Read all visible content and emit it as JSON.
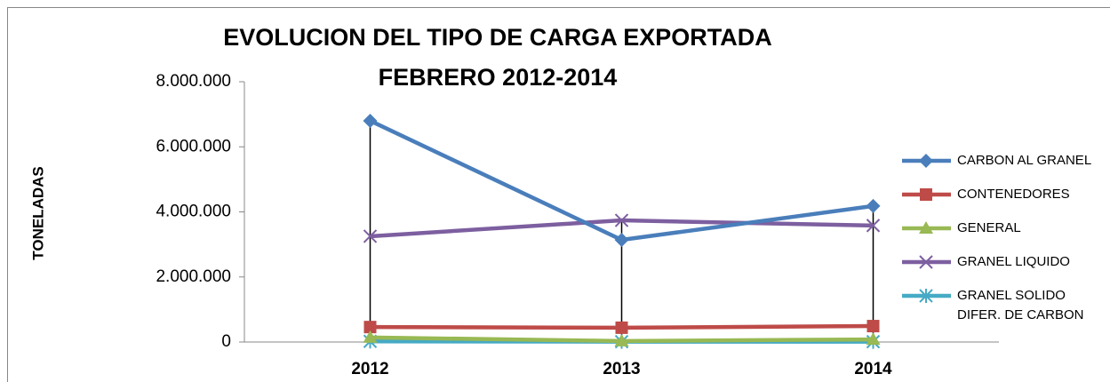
{
  "chart_data": {
    "type": "line",
    "title": [
      "EVOLUCION DEL TIPO DE CARGA EXPORTADA",
      "FEBRERO 2012-2014"
    ],
    "y_label": "TONELADAS",
    "categories": [
      "2012",
      "2013",
      "2014"
    ],
    "series": [
      {
        "name": "CARBON AL GRANEL",
        "color": "#4a7ebb",
        "marker": "diamond",
        "values": [
          6800000,
          3140000,
          4180000
        ]
      },
      {
        "name": "CONTENEDORES",
        "color": "#be4b48",
        "marker": "square",
        "values": [
          460000,
          440000,
          490000
        ]
      },
      {
        "name": "GENERAL",
        "color": "#98b954",
        "marker": "triangle",
        "values": [
          140000,
          30000,
          80000
        ]
      },
      {
        "name": "GRANEL LIQUIDO",
        "color": "#7d5fa0",
        "marker": "x",
        "values": [
          3250000,
          3740000,
          3580000
        ]
      },
      {
        "name": "GRANEL SOLIDO DIFER. DE CARBON",
        "color": "#46aac5",
        "marker": "star",
        "values": [
          20000,
          10000,
          10000
        ]
      }
    ],
    "ylim": [
      0,
      8000000
    ],
    "yticks": [
      0,
      {
        "value": 2000000,
        "label": "2.000.000"
      },
      {
        "value": 4000000,
        "label": "4.000.000"
      },
      {
        "value": 6000000,
        "label": "6.000.000"
      },
      {
        "value": 8000000,
        "label": "8.000.000"
      }
    ],
    "high_low_lines": true,
    "legend": "right"
  }
}
